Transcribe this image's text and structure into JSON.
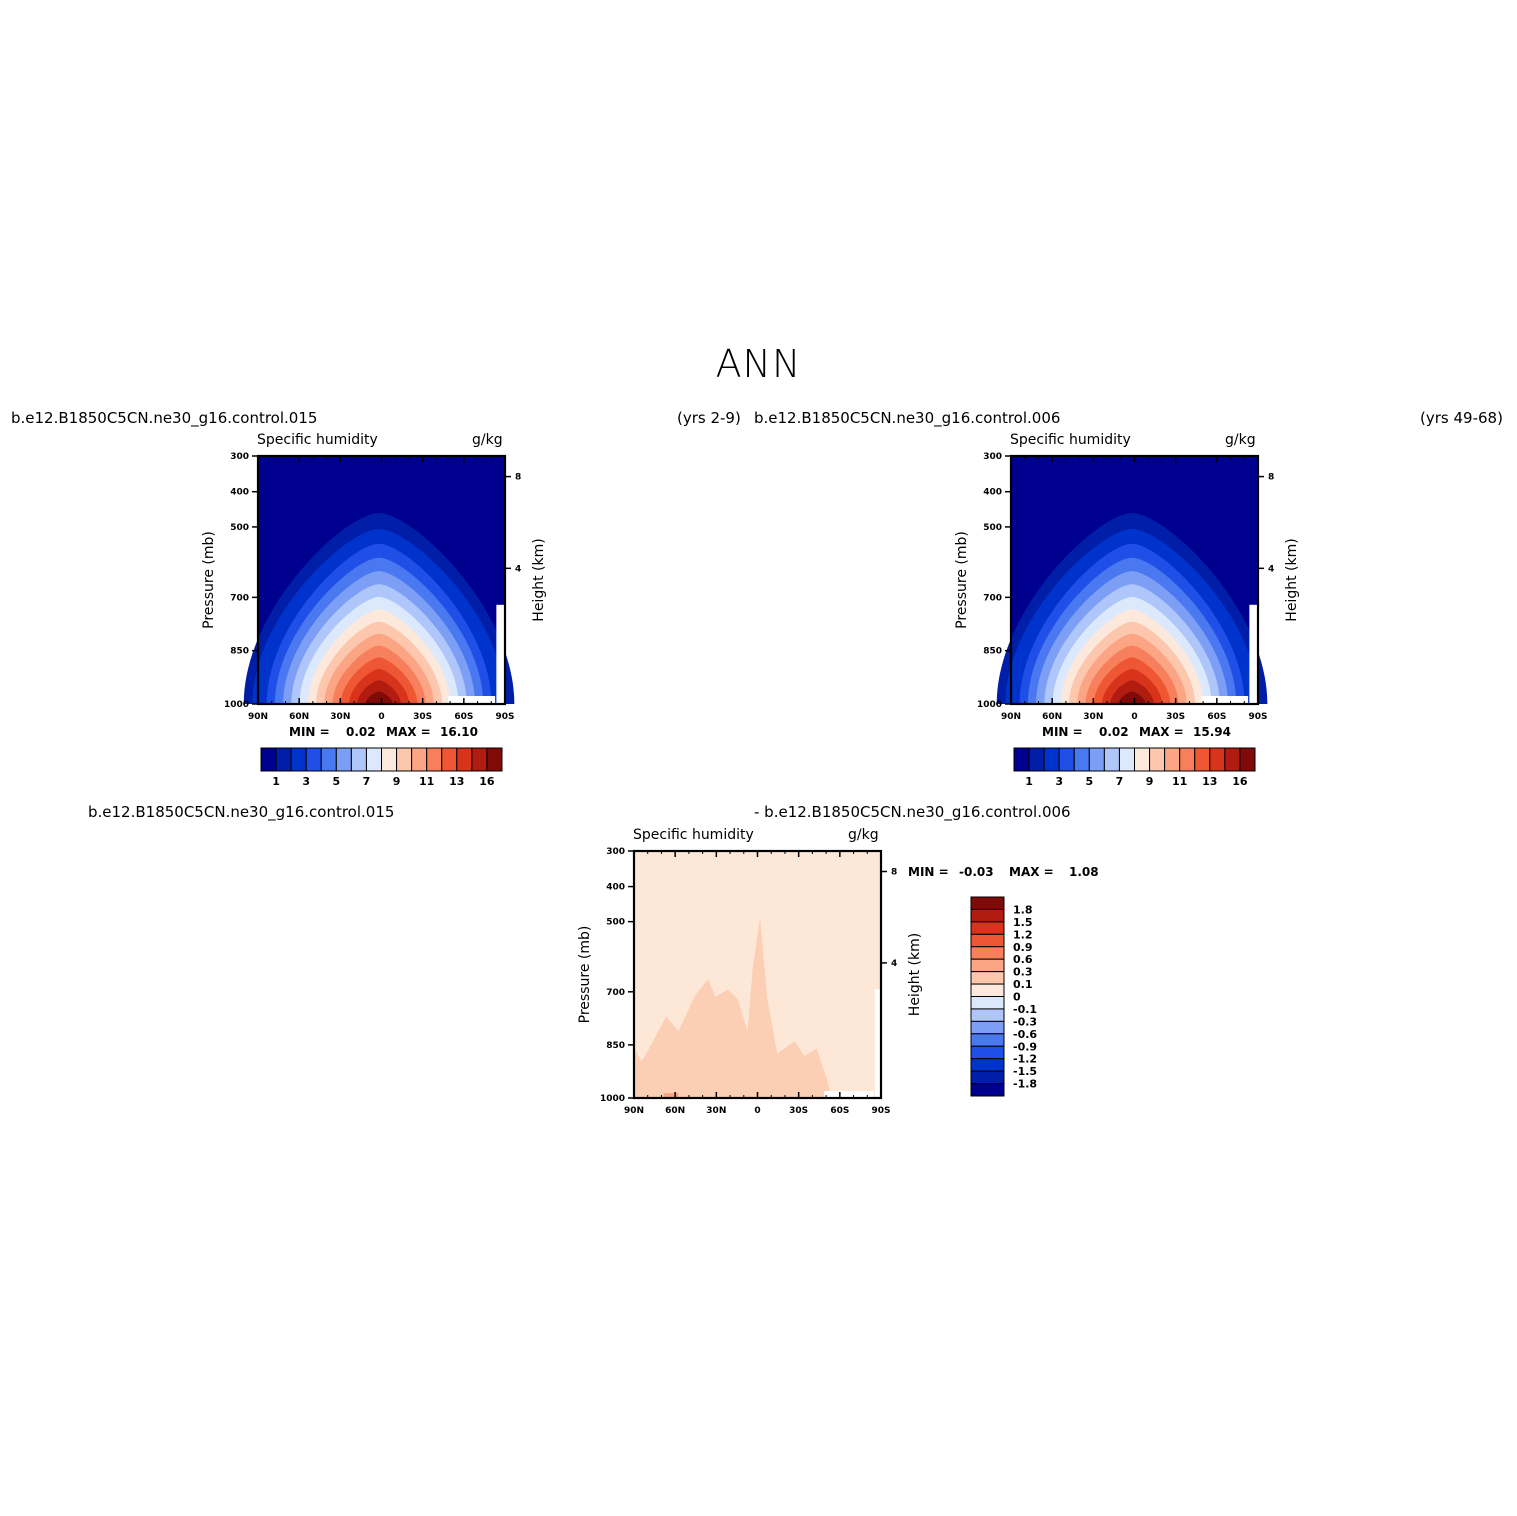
{
  "title": "ANN",
  "header": {
    "case_top_left": "b.e12.B1850C5CN.ne30_g16.control.015",
    "years_top_left": "(yrs 2-9)",
    "case_top_right": "b.e12.B1850C5CN.ne30_g16.control.006",
    "years_top_right": "(yrs 49-68)",
    "diff_left": "b.e12.B1850C5CN.ne30_g16.control.015",
    "diff_right": "- b.e12.B1850C5CN.ne30_g16.control.006"
  },
  "colors": {
    "abs_levels": [
      "#00008f",
      "#001ea8",
      "#0033cc",
      "#1f4fe6",
      "#4a78f0",
      "#7c9ff5",
      "#aec6fa",
      "#dce9fd",
      "#fde8dc",
      "#fcc7ad",
      "#fba585",
      "#f77f5c",
      "#ef5734",
      "#d8341c",
      "#b01c10",
      "#7f0a08"
    ],
    "diff_fill": [
      "#fde8d8",
      "#fccfb4",
      "#fba585"
    ],
    "diff_levels": [
      "#7f0a08",
      "#b01c10",
      "#d8341c",
      "#ef5734",
      "#f77f5c",
      "#fba585",
      "#fcc7ad",
      "#fde8dc",
      "#dce9fd",
      "#aec6fa",
      "#7c9ff5",
      "#4a78f0",
      "#1f4fe6",
      "#0033cc",
      "#001ea8",
      "#00008f"
    ]
  },
  "chart_data": [
    {
      "type": "heatmap",
      "title": "Specific humidity",
      "units": "g/kg",
      "xlabel": "",
      "ylabel": "Pressure (mb)",
      "y2label": "Height (km)",
      "xticks": [
        "90N",
        "60N",
        "30N",
        "0",
        "30S",
        "60S",
        "90S"
      ],
      "yticks": [
        "300",
        "400",
        "500",
        "700",
        "850",
        "1000"
      ],
      "y2ticks": [
        "8",
        "4"
      ],
      "min_label": "MIN =",
      "min": "0.02",
      "max_label": "MAX =",
      "max": "16.10",
      "colorbar_labels": [
        "1",
        "3",
        "5",
        "7",
        "9",
        "11",
        "13",
        "16"
      ]
    },
    {
      "type": "heatmap",
      "title": "Specific humidity",
      "units": "g/kg",
      "xlabel": "",
      "ylabel": "Pressure (mb)",
      "y2label": "Height (km)",
      "xticks": [
        "90N",
        "60N",
        "30N",
        "0",
        "30S",
        "60S",
        "90S"
      ],
      "yticks": [
        "300",
        "400",
        "500",
        "700",
        "850",
        "1000"
      ],
      "y2ticks": [
        "8",
        "4"
      ],
      "min_label": "MIN =",
      "min": "0.02",
      "max_label": "MAX =",
      "max": "15.94",
      "colorbar_labels": [
        "1",
        "3",
        "5",
        "7",
        "9",
        "11",
        "13",
        "16"
      ]
    },
    {
      "type": "heatmap",
      "title": "Specific humidity",
      "units": "g/kg",
      "xlabel": "",
      "ylabel": "Pressure (mb)",
      "y2label": "Height (km)",
      "xticks": [
        "90N",
        "60N",
        "30N",
        "0",
        "30S",
        "60S",
        "90S"
      ],
      "yticks": [
        "300",
        "400",
        "500",
        "700",
        "850",
        "1000"
      ],
      "y2ticks": [
        "8",
        "4"
      ],
      "min_label": "MIN =",
      "min": "-0.03",
      "max_label": "MAX =",
      "max": "1.08",
      "colorbar_labels": [
        "1.8",
        "1.5",
        "1.2",
        "0.9",
        "0.6",
        "0.3",
        "0.1",
        "0",
        "-0.1",
        "-0.3",
        "-0.6",
        "-0.9",
        "-1.2",
        "-1.5",
        "-1.8"
      ]
    }
  ]
}
